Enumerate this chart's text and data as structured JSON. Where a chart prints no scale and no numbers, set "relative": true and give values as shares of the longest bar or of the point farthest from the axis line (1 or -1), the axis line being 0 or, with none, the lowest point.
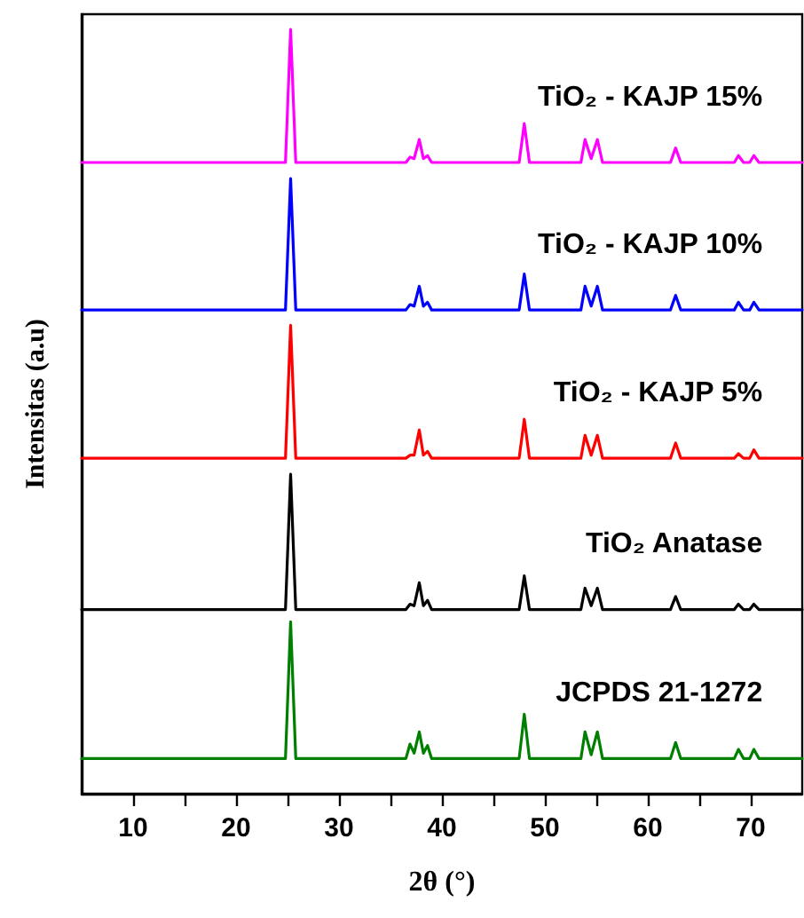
{
  "chart_data": {
    "type": "line",
    "xlabel": "2θ (°)",
    "ylabel": "Intensitas (a.u)",
    "relative": true,
    "marker": "none",
    "line_style": "solid",
    "grid": false,
    "xlim": [
      5,
      75
    ],
    "xticks": [
      10,
      {
        "value": 15,
        "label": null
      },
      20,
      {
        "value": 25,
        "label": null
      },
      30,
      {
        "value": 35,
        "label": null
      },
      40,
      {
        "value": 45,
        "label": null
      },
      50,
      {
        "value": 55,
        "label": null
      },
      60,
      {
        "value": 65,
        "label": null
      },
      70
    ],
    "x": [
      5,
      24.8,
      25.3,
      25.8,
      36.5,
      36.9,
      37.3,
      37.8,
      38.2,
      38.6,
      39.0,
      47.5,
      48.0,
      48.5,
      53.5,
      53.9,
      54.5,
      55.1,
      55.6,
      62.2,
      62.7,
      63.2,
      68.4,
      68.8,
      69.3,
      69.9,
      70.3,
      70.8,
      75
    ],
    "series": [
      {
        "name": "TiO₂ - KAJP 15%",
        "color": "#ff00ff",
        "values": [
          0.826,
          0.826,
          1,
          0.826,
          0.826,
          0.833,
          0.831,
          0.856,
          0.831,
          0.835,
          0.826,
          0.826,
          0.877,
          0.826,
          0.826,
          0.856,
          0.831,
          0.856,
          0.826,
          0.826,
          0.845,
          0.826,
          0.826,
          0.835,
          0.826,
          0.826,
          0.835,
          0.826,
          0.826
        ]
      },
      {
        "name": "TiO₂ - KAJP 10%",
        "color": "#0000ff",
        "values": [
          0.633,
          0.633,
          0.805,
          0.633,
          0.633,
          0.64,
          0.638,
          0.664,
          0.638,
          0.643,
          0.633,
          0.633,
          0.68,
          0.633,
          0.633,
          0.664,
          0.638,
          0.664,
          0.633,
          0.633,
          0.652,
          0.633,
          0.633,
          0.643,
          0.633,
          0.633,
          0.643,
          0.633,
          0.633
        ]
      },
      {
        "name": "TiO₂ - KAJP 5%",
        "color": "#ff0000",
        "values": [
          0.439,
          0.439,
          0.613,
          0.439,
          0.439,
          0.443,
          0.443,
          0.476,
          0.443,
          0.448,
          0.439,
          0.439,
          0.49,
          0.439,
          0.439,
          0.469,
          0.443,
          0.469,
          0.439,
          0.439,
          0.459,
          0.439,
          0.439,
          0.445,
          0.439,
          0.439,
          0.45,
          0.439,
          0.439
        ]
      },
      {
        "name": "TiO₂ Anatase",
        "color": "#000000",
        "values": [
          0.241,
          0.241,
          0.418,
          0.241,
          0.241,
          0.248,
          0.246,
          0.276,
          0.246,
          0.253,
          0.241,
          0.241,
          0.285,
          0.241,
          0.241,
          0.269,
          0.246,
          0.269,
          0.241,
          0.241,
          0.258,
          0.241,
          0.241,
          0.248,
          0.241,
          0.241,
          0.248,
          0.241,
          0.241
        ]
      },
      {
        "name": "JCPDS 21-1272",
        "color": "#008000",
        "values": [
          0.046,
          0.046,
          0.225,
          0.046,
          0.046,
          0.065,
          0.053,
          0.081,
          0.053,
          0.063,
          0.046,
          0.046,
          0.104,
          0.046,
          0.046,
          0.081,
          0.051,
          0.081,
          0.046,
          0.046,
          0.067,
          0.046,
          0.046,
          0.058,
          0.046,
          0.046,
          0.058,
          0.046,
          0.046
        ]
      }
    ]
  }
}
